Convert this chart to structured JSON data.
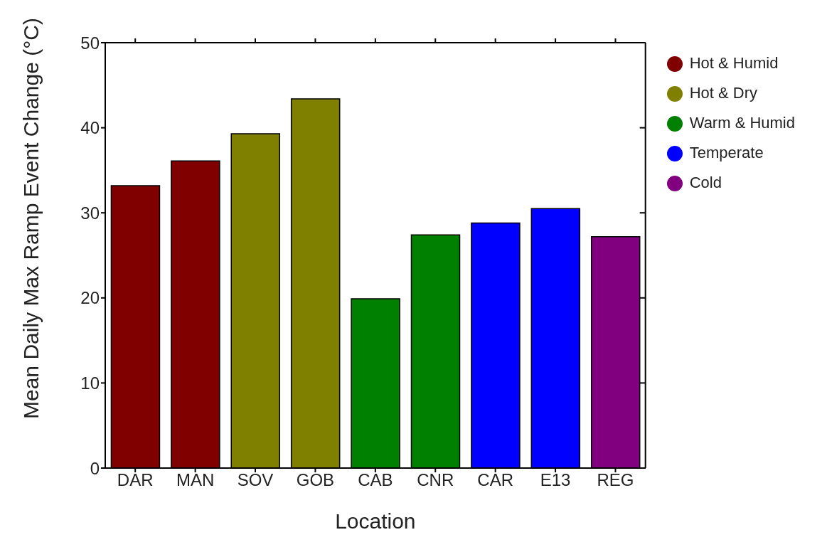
{
  "chart_data": {
    "type": "bar",
    "xlabel": "Location",
    "ylabel": "Mean Daily Max Ramp Event Change (°C)",
    "categories": [
      "DAR",
      "MAN",
      "SOV",
      "GOB",
      "CAB",
      "CNR",
      "CAR",
      "E13",
      "REG"
    ],
    "stacked": true,
    "series": [
      {
        "name": "Hot & Humid",
        "color": "#800000",
        "values": [
          33.2,
          36.1,
          null,
          null,
          null,
          null,
          null,
          null,
          null
        ]
      },
      {
        "name": "Hot & Dry",
        "color": "#808000",
        "values": [
          null,
          null,
          39.3,
          43.4,
          null,
          null,
          null,
          null,
          null
        ]
      },
      {
        "name": "Warm & Humid",
        "color": "#008000",
        "values": [
          null,
          null,
          null,
          null,
          19.9,
          27.4,
          null,
          null,
          null
        ]
      },
      {
        "name": "Temperate",
        "color": "#0000ff",
        "values": [
          null,
          null,
          null,
          null,
          null,
          null,
          28.8,
          30.5,
          null
        ]
      },
      {
        "name": "Cold",
        "color": "#800080",
        "values": [
          null,
          null,
          null,
          null,
          null,
          null,
          null,
          null,
          27.2
        ]
      }
    ],
    "ylim": [
      0,
      50
    ],
    "yticks": [
      0,
      10,
      20,
      30,
      40,
      50
    ],
    "grid": false,
    "legend": "top right"
  }
}
